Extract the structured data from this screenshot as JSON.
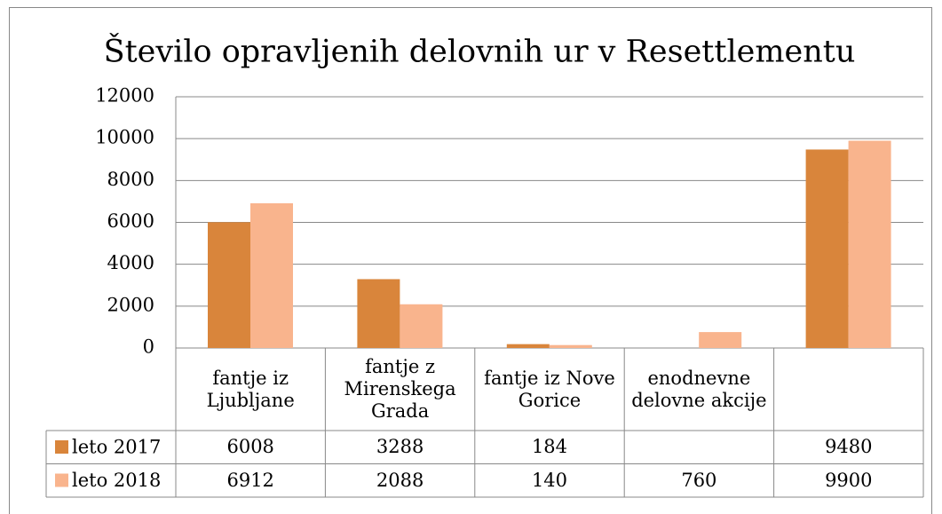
{
  "chart_data": {
    "type": "bar",
    "title": "Število opravljenih delovnih ur v Resettlementu",
    "categories": [
      "fantje iz Ljubljane",
      "fantje z Mirenskega Grada",
      "fantje iz Nove Gorice",
      "enodnevne delovne akcije",
      null
    ],
    "series": [
      {
        "name": "leto 2017",
        "color": "#d9853b",
        "values": [
          6008,
          3288,
          184,
          null,
          9480
        ]
      },
      {
        "name": "leto 2018",
        "color": "#f9b48d",
        "values": [
          6912,
          2088,
          140,
          760,
          9900
        ]
      }
    ],
    "ylim": [
      0,
      12000
    ],
    "yticks": [
      0,
      2000,
      4000,
      6000,
      8000,
      10000,
      12000
    ],
    "grid": true,
    "data_table": true
  }
}
